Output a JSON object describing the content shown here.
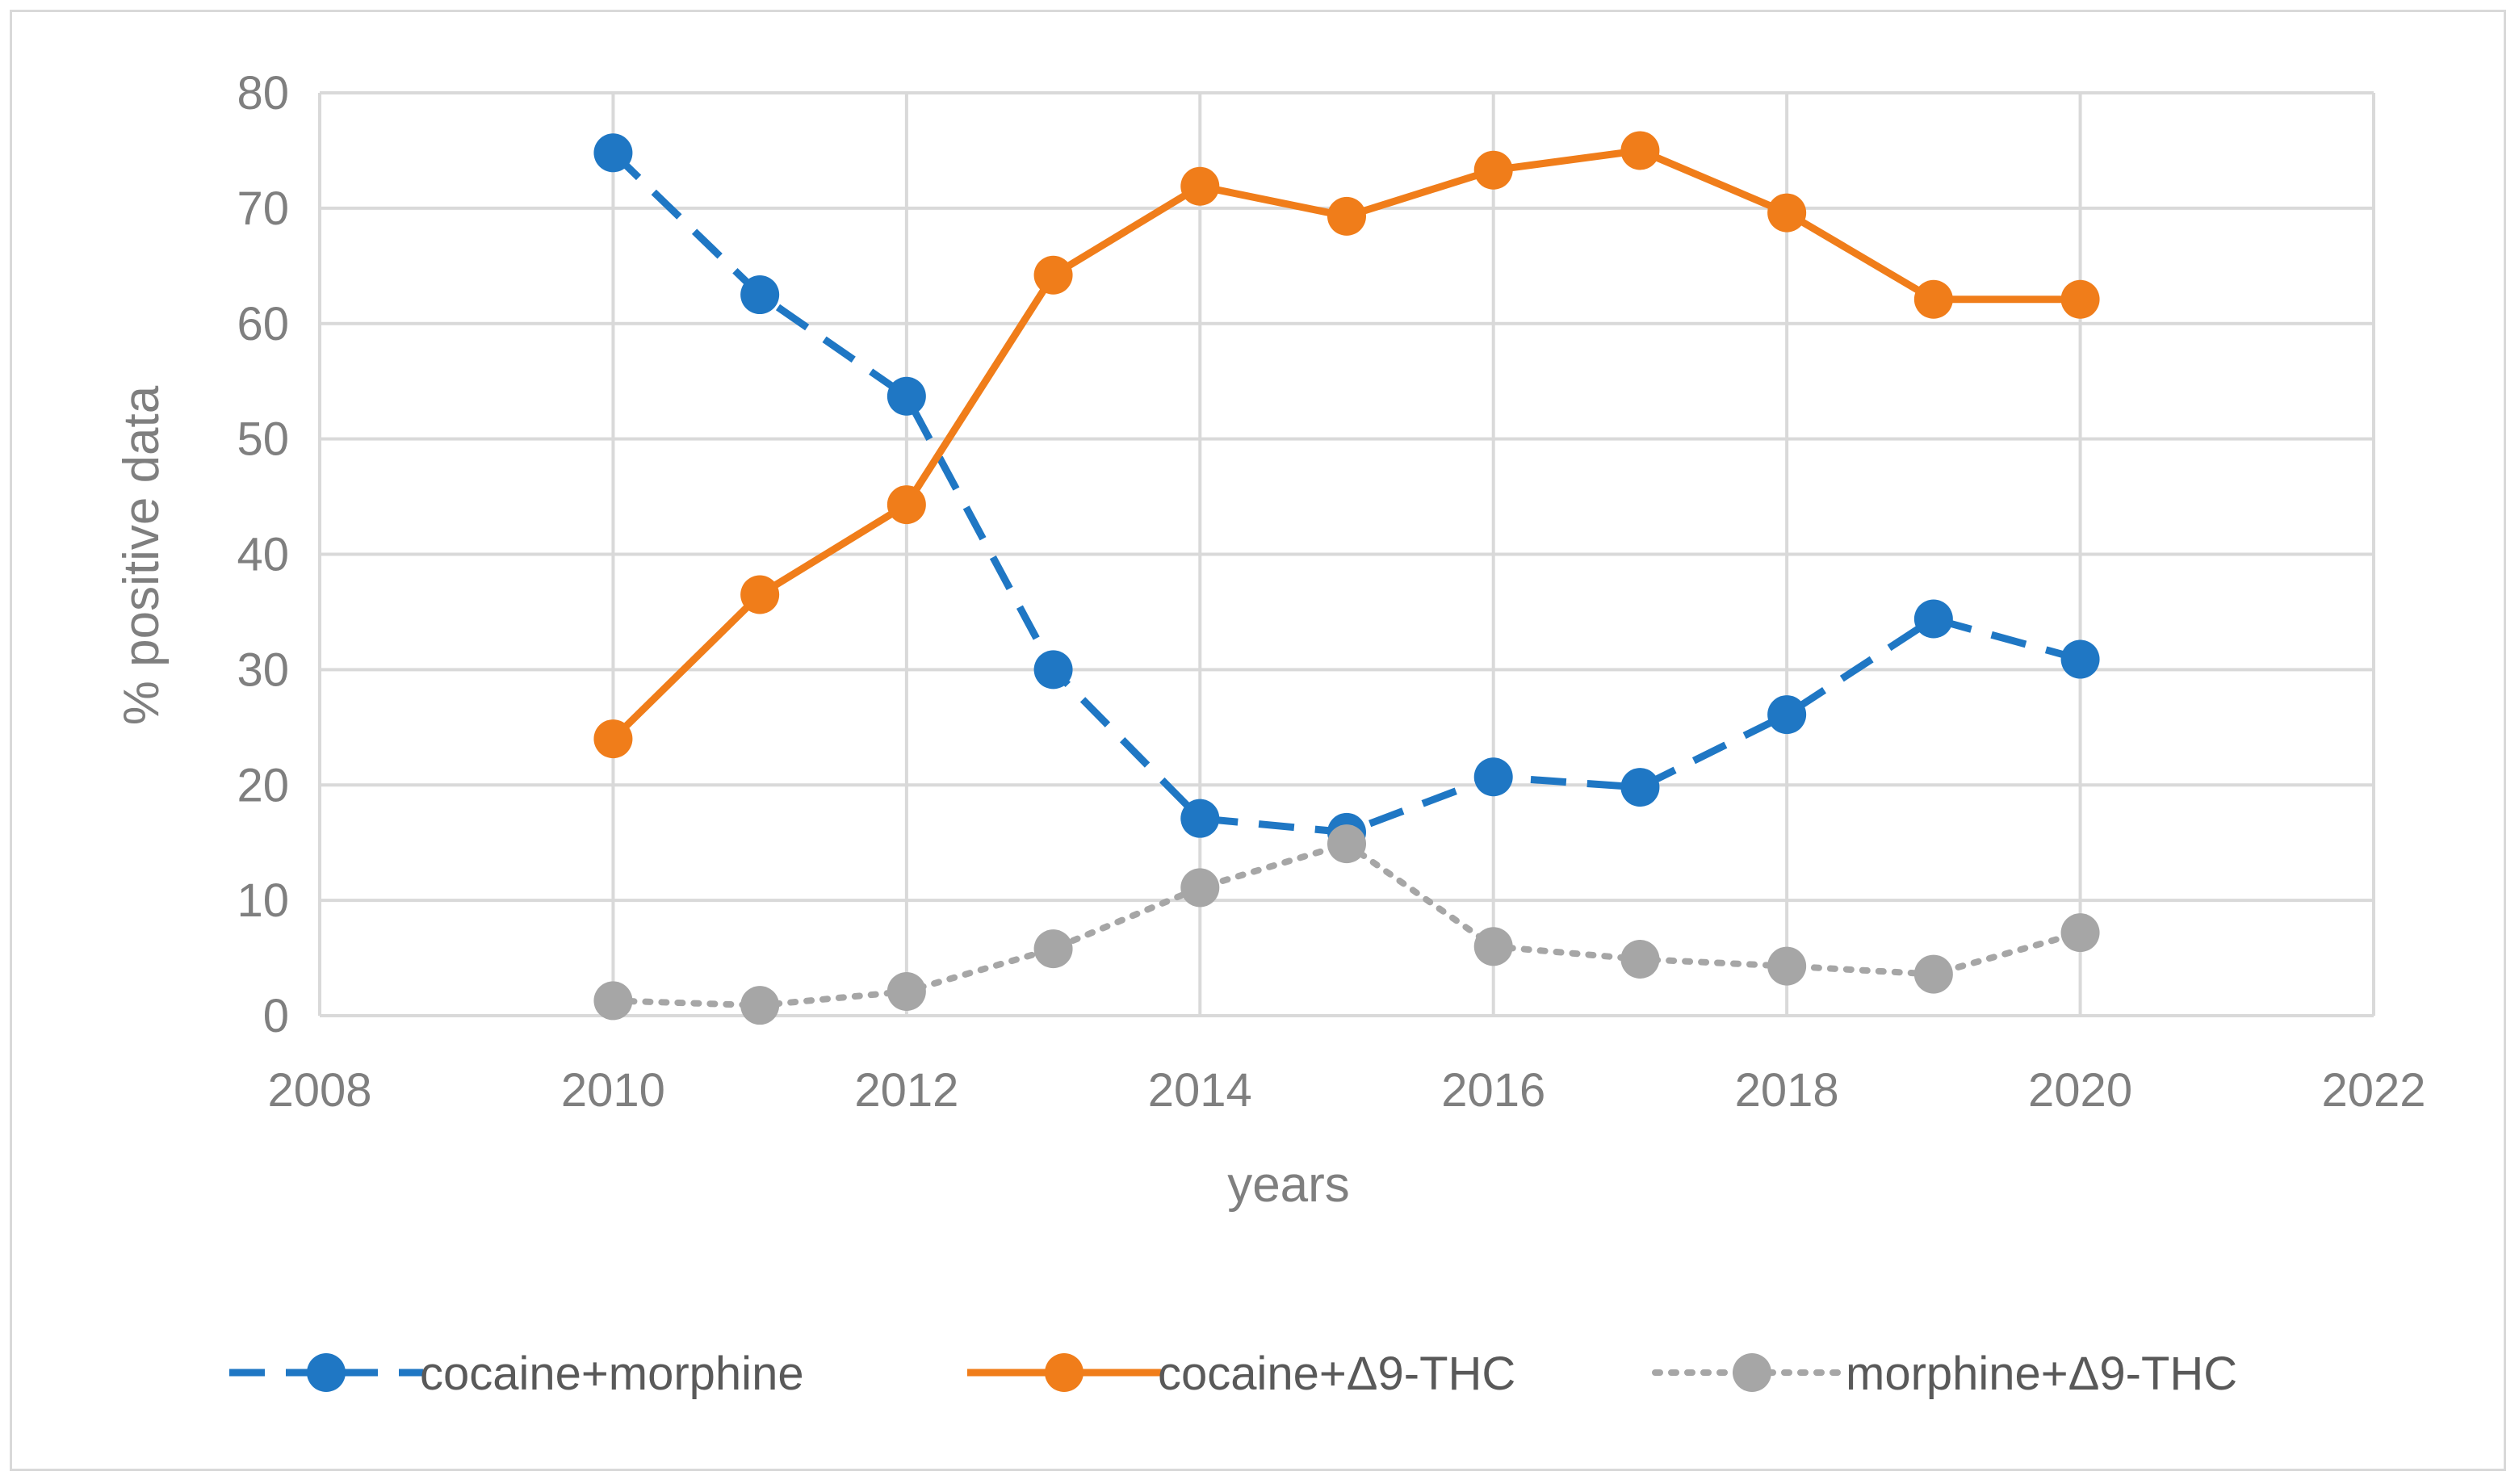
{
  "chart_data": {
    "type": "line",
    "title": "",
    "xlabel": "years",
    "ylabel": "% positive data",
    "xlim": [
      2008,
      2022
    ],
    "ylim": [
      0,
      80
    ],
    "xticks": [
      2008,
      2010,
      2012,
      2014,
      2016,
      2018,
      2020,
      2022
    ],
    "yticks": [
      0,
      10,
      20,
      30,
      40,
      50,
      60,
      70,
      80
    ],
    "grid": true,
    "legend_position": "bottom",
    "x": [
      2010,
      2011,
      2012,
      2013,
      2014,
      2015,
      2016,
      2017,
      2018,
      2019,
      2020
    ],
    "series": [
      {
        "name": "cocaine+morphine",
        "color": "#1f77c4",
        "line_style": "dashed",
        "values": [
          74.8,
          62.5,
          53.7,
          30.0,
          17.1,
          15.9,
          20.7,
          19.8,
          26.1,
          34.4,
          30.9
        ]
      },
      {
        "name": "cocaine+Δ9-THC",
        "color": "#f07d1a",
        "line_style": "solid",
        "values": [
          24.0,
          36.5,
          44.3,
          64.2,
          71.9,
          69.3,
          73.3,
          75.0,
          69.6,
          62.1,
          62.1
        ]
      },
      {
        "name": "morphine+Δ9-THC",
        "color": "#a6a6a6",
        "line_style": "dotted",
        "values": [
          1.3,
          0.9,
          2.1,
          5.8,
          11.1,
          14.9,
          6.0,
          4.9,
          4.3,
          3.6,
          7.2
        ]
      }
    ]
  }
}
